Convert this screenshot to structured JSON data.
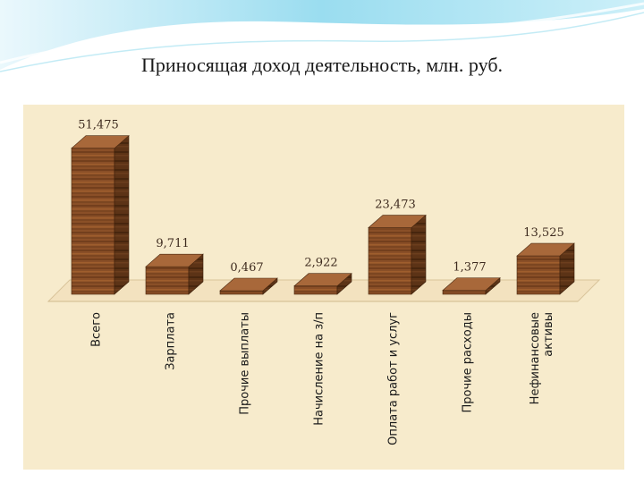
{
  "slide": {
    "title": "Приносящая доход деятельность, млн. руб."
  },
  "colors": {
    "panel": "#f7ebcc",
    "bar_front": "#8a4f27",
    "bar_side": "#5c3316",
    "bar_top": "#a8683a",
    "floor": "#f2e0bd",
    "header_wave": "#7fd3ea"
  },
  "chart_data": {
    "type": "bar",
    "title": "",
    "xlabel": "",
    "ylabel": "",
    "categories": [
      "Всего",
      "Зарплата",
      "Прочие выплаты",
      "Начисление на з/п",
      "Оплата работ и услуг",
      "Прочие расходы",
      "Нефинансовые активы"
    ],
    "category_labels": [
      [
        "Всего"
      ],
      [
        "Зарплата"
      ],
      [
        "Прочие выплаты"
      ],
      [
        "Начисление на з/п"
      ],
      [
        "Оплата работ и услуг"
      ],
      [
        "Прочие расходы"
      ],
      [
        "Нефинансовые",
        "активы"
      ]
    ],
    "values": [
      51.475,
      9.711,
      0.467,
      2.922,
      23.473,
      1.377,
      13.525
    ],
    "value_labels": [
      "51,475",
      "9,711",
      "0,467",
      "2,922",
      "23,473",
      "1,377",
      "13,525"
    ],
    "ylim": [
      0,
      52
    ],
    "grid": false,
    "legend": "none",
    "style": "3d-wood"
  }
}
